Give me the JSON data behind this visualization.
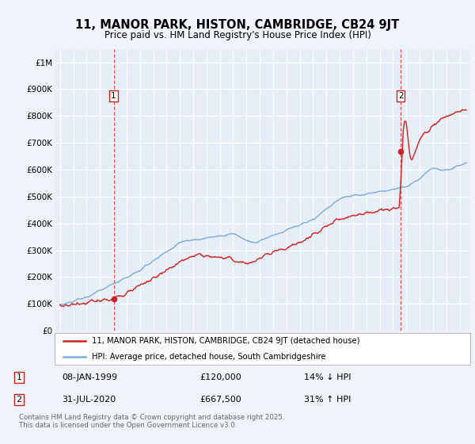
{
  "title": "11, MANOR PARK, HISTON, CAMBRIDGE, CB24 9JT",
  "subtitle": "Price paid vs. HM Land Registry's House Price Index (HPI)",
  "background_color": "#f0f4fa",
  "plot_bg_color": "#e8eef8",
  "ylim": [
    0,
    1050000
  ],
  "yticks": [
    0,
    100000,
    200000,
    300000,
    400000,
    500000,
    600000,
    700000,
    800000,
    900000,
    1000000
  ],
  "ytick_labels": [
    "£0",
    "£100K",
    "£200K",
    "£300K",
    "£400K",
    "£500K",
    "£600K",
    "£700K",
    "£800K",
    "£900K",
    "£1M"
  ],
  "marker1_year": 1999.03,
  "marker1_price": 120000,
  "marker2_year": 2020.58,
  "marker2_price": 667500,
  "vline1_year": 1999.03,
  "vline2_year": 2020.58,
  "legend_line1": "11, MANOR PARK, HISTON, CAMBRIDGE, CB24 9JT (detached house)",
  "legend_line2": "HPI: Average price, detached house, South Cambridgeshire",
  "footer": "Contains HM Land Registry data © Crown copyright and database right 2025.\nThis data is licensed under the Open Government Licence v3.0.",
  "red_color": "#cc2222",
  "blue_color": "#7aaadd",
  "marker_box_color": "#cc2222",
  "box1_label": "1",
  "box2_label": "2",
  "row1_date": "08-JAN-1999",
  "row1_price": "£120,000",
  "row1_pct": "14% ↓ HPI",
  "row2_date": "31-JUL-2020",
  "row2_price": "£667,500",
  "row2_pct": "31% ↑ HPI"
}
